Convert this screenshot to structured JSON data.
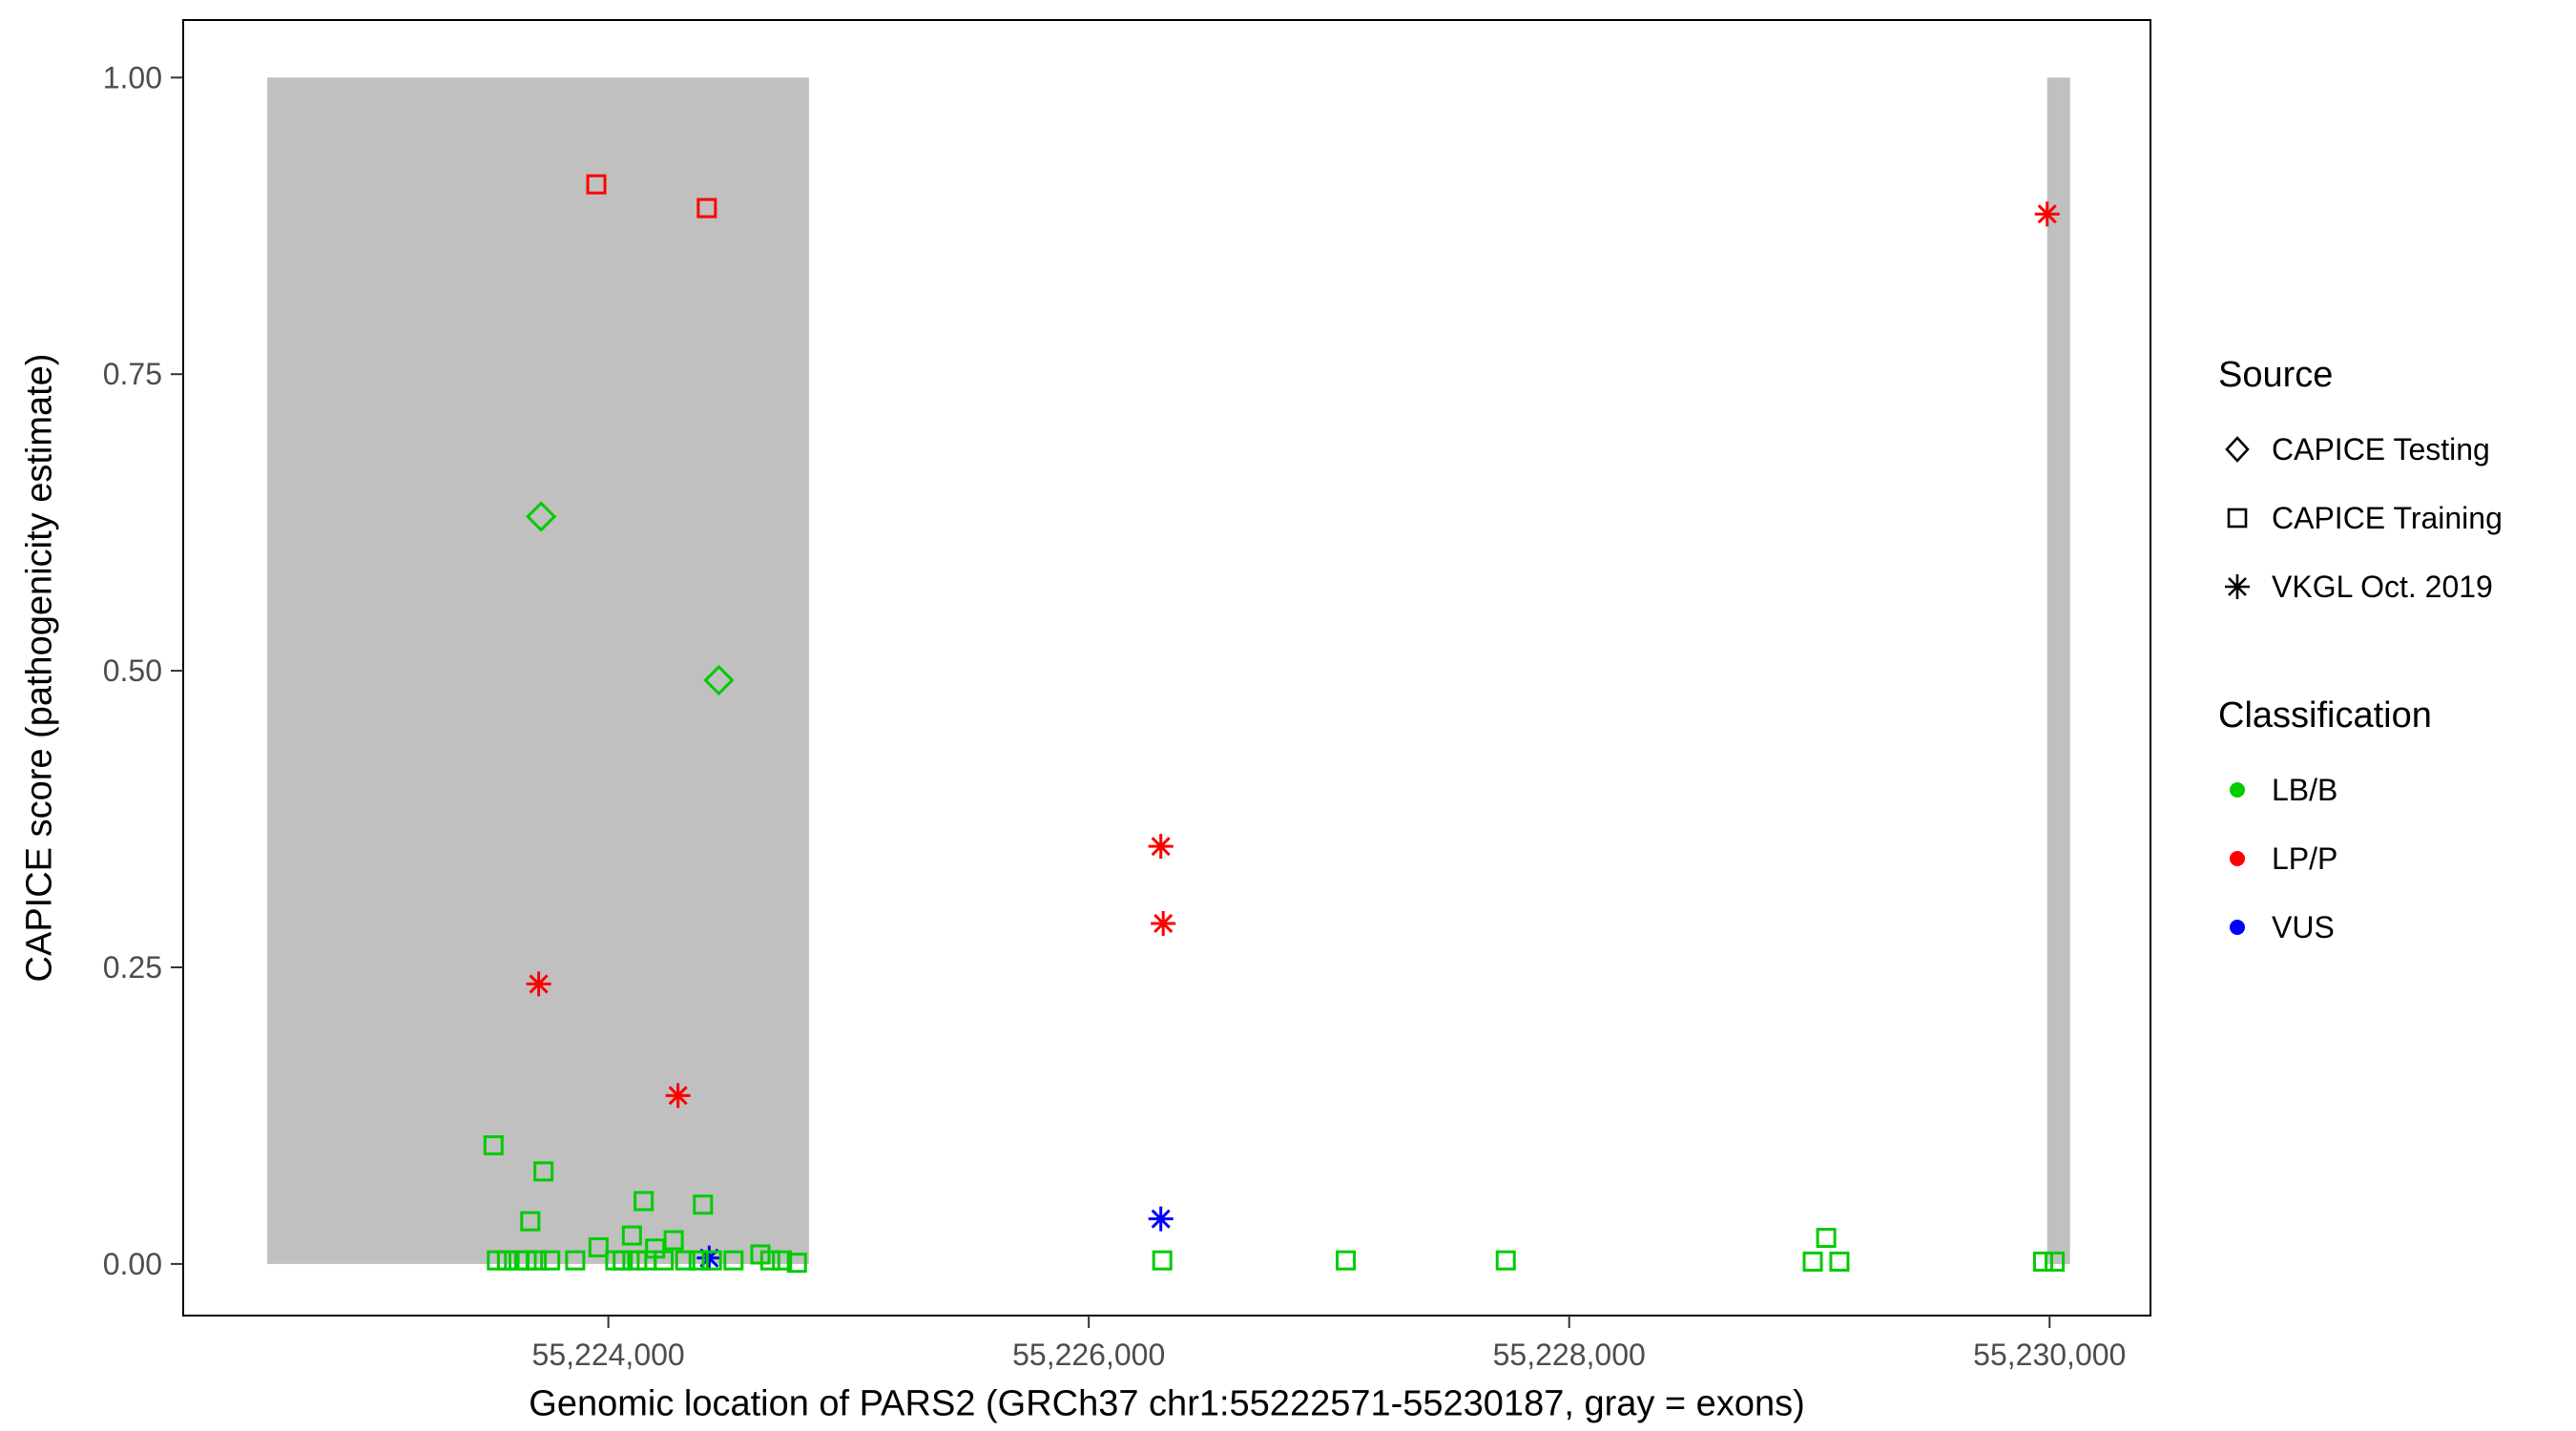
{
  "chart_data": {
    "type": "scatter",
    "title": "",
    "xlabel": "Genomic location of PARS2 (GRCh37 chr1:55222571-55230187, gray = exons)",
    "ylabel": "CAPICE score (pathogenicity estimate)",
    "xlim": [
      55222230,
      55230420
    ],
    "ylim": [
      -0.0435,
      1.0485
    ],
    "x_ticks": [
      55224000,
      55226000,
      55228000,
      55230000
    ],
    "x_tick_labels": [
      "55,224,000",
      "55,226,000",
      "55,228,000",
      "55,230,000"
    ],
    "y_ticks": [
      0,
      0.25,
      0.5,
      0.75,
      1.0
    ],
    "y_tick_labels": [
      "0.00",
      "0.25",
      "0.50",
      "0.75",
      "1.00"
    ],
    "grid": false,
    "legend_position": "right",
    "exons": [
      {
        "start": 55222580,
        "end": 55224835
      },
      {
        "start": 55229990,
        "end": 55230085
      }
    ],
    "colors": {
      "LB/B": "#00cc00",
      "LP/P": "#ff0000",
      "VUS": "#0000ff",
      "exon": "#c0c0c0",
      "panel_border": "#000000",
      "tick_text": "#4d4d4d"
    },
    "shapes": {
      "CAPICE Testing": "diamond",
      "CAPICE Training": "square",
      "VKGL Oct. 2019": "asterisk"
    },
    "legend_source": {
      "title": "Source",
      "items": [
        {
          "label": "CAPICE Testing",
          "shape": "diamond"
        },
        {
          "label": "CAPICE Training",
          "shape": "square"
        },
        {
          "label": "VKGL Oct. 2019",
          "shape": "asterisk"
        }
      ]
    },
    "legend_classification": {
      "title": "Classification",
      "items": [
        {
          "label": "LB/B",
          "color": "#00cc00"
        },
        {
          "label": "LP/P",
          "color": "#ff0000"
        },
        {
          "label": "VUS",
          "color": "#0000ff"
        }
      ]
    },
    "points": [
      {
        "x": 55223950,
        "y": 0.91,
        "source": "CAPICE Training",
        "cls": "LP/P"
      },
      {
        "x": 55224410,
        "y": 0.89,
        "source": "CAPICE Training",
        "cls": "LP/P"
      },
      {
        "x": 55223720,
        "y": 0.63,
        "source": "CAPICE Testing",
        "cls": "LB/B"
      },
      {
        "x": 55224460,
        "y": 0.492,
        "source": "CAPICE Testing",
        "cls": "LB/B"
      },
      {
        "x": 55229990,
        "y": 0.885,
        "source": "VKGL Oct. 2019",
        "cls": "LP/P"
      },
      {
        "x": 55226300,
        "y": 0.352,
        "source": "VKGL Oct. 2019",
        "cls": "LP/P"
      },
      {
        "x": 55226310,
        "y": 0.287,
        "source": "VKGL Oct. 2019",
        "cls": "LP/P"
      },
      {
        "x": 55223710,
        "y": 0.236,
        "source": "VKGL Oct. 2019",
        "cls": "LP/P"
      },
      {
        "x": 55224290,
        "y": 0.142,
        "source": "VKGL Oct. 2019",
        "cls": "LP/P"
      },
      {
        "x": 55226300,
        "y": 0.038,
        "source": "VKGL Oct. 2019",
        "cls": "VUS"
      },
      {
        "x": 55224420,
        "y": 0.005,
        "source": "VKGL Oct. 2019",
        "cls": "VUS"
      },
      {
        "x": 55223522,
        "y": 0.1,
        "source": "CAPICE Training",
        "cls": "LB/B"
      },
      {
        "x": 55223730,
        "y": 0.078,
        "source": "CAPICE Training",
        "cls": "LB/B"
      },
      {
        "x": 55223675,
        "y": 0.036,
        "source": "CAPICE Training",
        "cls": "LB/B"
      },
      {
        "x": 55224147,
        "y": 0.053,
        "source": "CAPICE Training",
        "cls": "LB/B"
      },
      {
        "x": 55224394,
        "y": 0.05,
        "source": "CAPICE Training",
        "cls": "LB/B"
      },
      {
        "x": 55224098,
        "y": 0.024,
        "source": "CAPICE Training",
        "cls": "LB/B"
      },
      {
        "x": 55223959,
        "y": 0.014,
        "source": "CAPICE Training",
        "cls": "LB/B"
      },
      {
        "x": 55224195,
        "y": 0.013,
        "source": "CAPICE Training",
        "cls": "LB/B"
      },
      {
        "x": 55224272,
        "y": 0.02,
        "source": "CAPICE Training",
        "cls": "LB/B"
      },
      {
        "x": 55223536,
        "y": 0.003,
        "source": "CAPICE Training",
        "cls": "LB/B"
      },
      {
        "x": 55223578,
        "y": 0.003,
        "source": "CAPICE Training",
        "cls": "LB/B"
      },
      {
        "x": 55223626,
        "y": 0.003,
        "source": "CAPICE Training",
        "cls": "LB/B"
      },
      {
        "x": 55223660,
        "y": 0.003,
        "source": "CAPICE Training",
        "cls": "LB/B"
      },
      {
        "x": 55223702,
        "y": 0.003,
        "source": "CAPICE Training",
        "cls": "LB/B"
      },
      {
        "x": 55223758,
        "y": 0.003,
        "source": "CAPICE Training",
        "cls": "LB/B"
      },
      {
        "x": 55223862,
        "y": 0.003,
        "source": "CAPICE Training",
        "cls": "LB/B"
      },
      {
        "x": 55224029,
        "y": 0.003,
        "source": "CAPICE Training",
        "cls": "LB/B"
      },
      {
        "x": 55224060,
        "y": 0.003,
        "source": "CAPICE Training",
        "cls": "LB/B"
      },
      {
        "x": 55224120,
        "y": 0.003,
        "source": "CAPICE Training",
        "cls": "LB/B"
      },
      {
        "x": 55224160,
        "y": 0.003,
        "source": "CAPICE Training",
        "cls": "LB/B"
      },
      {
        "x": 55224230,
        "y": 0.003,
        "source": "CAPICE Training",
        "cls": "LB/B"
      },
      {
        "x": 55224320,
        "y": 0.003,
        "source": "CAPICE Training",
        "cls": "LB/B"
      },
      {
        "x": 55224376,
        "y": 0.003,
        "source": "CAPICE Training",
        "cls": "LB/B"
      },
      {
        "x": 55224431,
        "y": 0.003,
        "source": "CAPICE Training",
        "cls": "LB/B"
      },
      {
        "x": 55224521,
        "y": 0.003,
        "source": "CAPICE Training",
        "cls": "LB/B"
      },
      {
        "x": 55224633,
        "y": 0.008,
        "source": "CAPICE Training",
        "cls": "LB/B"
      },
      {
        "x": 55224674,
        "y": 0.003,
        "source": "CAPICE Training",
        "cls": "LB/B"
      },
      {
        "x": 55224723,
        "y": 0.003,
        "source": "CAPICE Training",
        "cls": "LB/B"
      },
      {
        "x": 55224785,
        "y": 0.001,
        "source": "CAPICE Training",
        "cls": "LB/B"
      },
      {
        "x": 55226306,
        "y": 0.003,
        "source": "CAPICE Training",
        "cls": "LB/B"
      },
      {
        "x": 55227070,
        "y": 0.003,
        "source": "CAPICE Training",
        "cls": "LB/B"
      },
      {
        "x": 55227736,
        "y": 0.003,
        "source": "CAPICE Training",
        "cls": "LB/B"
      },
      {
        "x": 55229014,
        "y": 0.002,
        "source": "CAPICE Training",
        "cls": "LB/B"
      },
      {
        "x": 55229070,
        "y": 0.022,
        "source": "CAPICE Training",
        "cls": "LB/B"
      },
      {
        "x": 55229125,
        "y": 0.002,
        "source": "CAPICE Training",
        "cls": "LB/B"
      },
      {
        "x": 55229973,
        "y": 0.002,
        "source": "CAPICE Training",
        "cls": "LB/B"
      },
      {
        "x": 55230021,
        "y": 0.002,
        "source": "CAPICE Training",
        "cls": "LB/B"
      }
    ]
  }
}
